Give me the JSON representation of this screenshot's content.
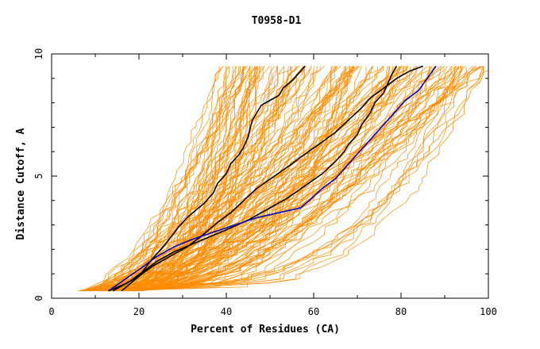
{
  "chart_data": {
    "type": "line",
    "title": "T0958-D1",
    "xlabel": "Percent of Residues (CA)",
    "ylabel": "Distance Cutoff, A",
    "xlim": [
      0,
      100
    ],
    "ylim": [
      0,
      10
    ],
    "x_ticks": [
      "0",
      "20",
      "40",
      "60",
      "80",
      "100"
    ],
    "y_ticks": [
      "0",
      "5",
      "10"
    ],
    "grid": false,
    "legend": "none",
    "colors": {
      "orange": "#ff8c00",
      "black": "#000000",
      "blue": "#0000cc"
    },
    "background_lines_count": 160,
    "highlight_series": [
      {
        "color": "black",
        "x": [
          16,
          20,
          23,
          26,
          29,
          31,
          33,
          35,
          37,
          38,
          40,
          41,
          43,
          44,
          45,
          45.5,
          46,
          47,
          48,
          50,
          52,
          53,
          55,
          56,
          57,
          58
        ],
        "y": [
          0.3,
          0.9,
          1.6,
          2.2,
          2.9,
          3.3,
          3.6,
          3.9,
          4.3,
          4.7,
          5.1,
          5.5,
          5.9,
          6.2,
          6.6,
          7.0,
          7.3,
          7.6,
          7.9,
          8.1,
          8.3,
          8.6,
          8.9,
          9.1,
          9.3,
          9.5
        ]
      },
      {
        "color": "black",
        "x": [
          13,
          17,
          20,
          23,
          27,
          31,
          34,
          36,
          38,
          41,
          44,
          47,
          51,
          55,
          58,
          62,
          65,
          68,
          71,
          73,
          76,
          79,
          82,
          85
        ],
        "y": [
          0.3,
          0.6,
          0.9,
          1.3,
          1.7,
          2.1,
          2.5,
          2.8,
          3.1,
          3.5,
          4.0,
          4.5,
          5.0,
          5.5,
          5.9,
          6.4,
          6.8,
          7.3,
          7.8,
          8.2,
          8.6,
          9.0,
          9.3,
          9.5
        ]
      },
      {
        "color": "black",
        "x": [
          14,
          18,
          21,
          24,
          28,
          32,
          36,
          40,
          45,
          50,
          54,
          58,
          62,
          65,
          67,
          68,
          70,
          71,
          73,
          74,
          76,
          77,
          78,
          79
        ],
        "y": [
          0.3,
          0.7,
          1.1,
          1.5,
          1.9,
          2.2,
          2.5,
          2.8,
          3.2,
          3.7,
          4.1,
          4.6,
          5.1,
          5.6,
          6.0,
          6.3,
          6.7,
          7.1,
          7.6,
          8.0,
          8.4,
          8.8,
          9.2,
          9.5
        ]
      },
      {
        "color": "blue",
        "x": [
          13,
          17,
          21,
          24,
          28,
          32,
          37,
          42,
          47,
          52,
          57,
          59,
          62,
          65,
          67,
          69,
          71,
          73,
          75,
          77,
          79,
          81,
          84,
          86,
          88
        ],
        "y": [
          0.3,
          0.8,
          1.3,
          1.7,
          2.1,
          2.4,
          2.7,
          3.0,
          3.3,
          3.5,
          3.7,
          4.0,
          4.5,
          4.9,
          5.3,
          5.7,
          6.1,
          6.5,
          6.9,
          7.3,
          7.7,
          8.1,
          8.5,
          9.0,
          9.5
        ]
      }
    ]
  }
}
